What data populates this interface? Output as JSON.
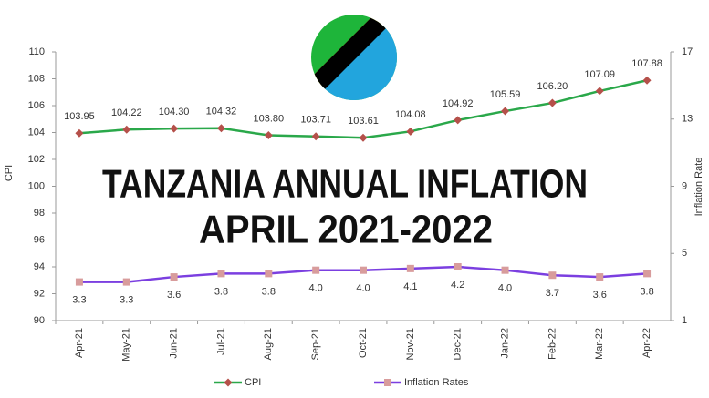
{
  "chart_data": {
    "type": "line",
    "title": [
      "TANZANIA ANNUAL INFLATION",
      "APRIL 2021-2022"
    ],
    "y_label": "CPI",
    "y2_label": "Inflation Rate",
    "categories": [
      "Apr-21",
      "May-21",
      "Jun-21",
      "Jul-21",
      "Aug-21",
      "Sep-21",
      "Oct-21",
      "Nov-21",
      "Dec-21",
      "Jan-22",
      "Feb-22",
      "Mar-22",
      "Apr-22"
    ],
    "series": [
      {
        "name": "CPI",
        "color": "#2aa84a",
        "marker_color": "#b5504a",
        "marker": "diamond",
        "values": [
          103.95,
          104.22,
          104.3,
          104.32,
          103.8,
          103.71,
          103.61,
          104.08,
          104.92,
          105.59,
          106.2,
          107.09,
          107.88
        ],
        "value_labels": [
          "103.95",
          "104.22",
          "104.30",
          "104.32",
          "103.80",
          "103.71",
          "103.61",
          "104.08",
          "104.92",
          "105.59",
          "106.20",
          "107.09",
          "107.88"
        ]
      },
      {
        "name": "Inflation Rates",
        "color": "#7b3fe0",
        "marker_color": "#d89c9c",
        "marker": "square",
        "axis": "y2",
        "values": [
          3.3,
          3.3,
          3.6,
          3.8,
          3.8,
          4.0,
          4.0,
          4.1,
          4.2,
          4.0,
          3.7,
          3.6,
          3.8
        ],
        "value_labels": [
          "3.3",
          "3.3",
          "3.6",
          "3.8",
          "3.8",
          "4.0",
          "4.0",
          "4.1",
          "4.2",
          "4.0",
          "3.7",
          "3.6",
          "3.8"
        ]
      }
    ],
    "ylim": [
      90,
      110
    ],
    "yticks": [
      90,
      92,
      94,
      96,
      98,
      100,
      102,
      104,
      106,
      108,
      110
    ],
    "y2lim": [
      1,
      17
    ],
    "y2ticks": [
      1,
      5,
      9,
      13,
      17
    ],
    "grid": false
  }
}
